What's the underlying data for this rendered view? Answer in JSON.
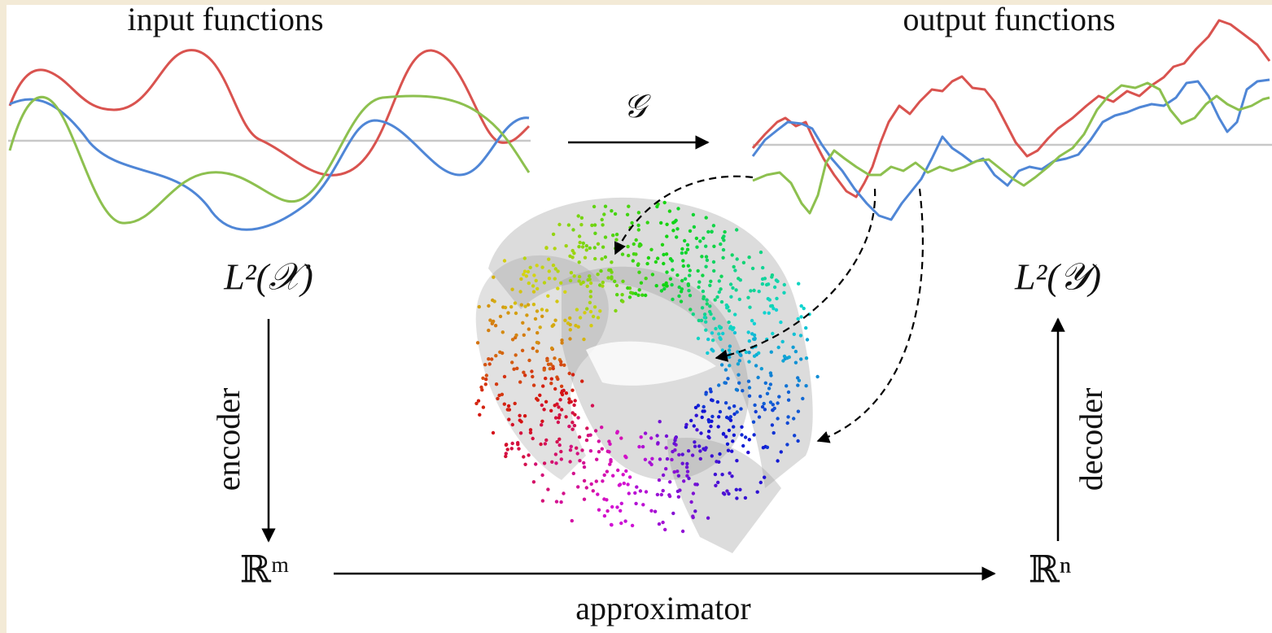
{
  "functions": {
    "input": "input functions",
    "output": "output functions"
  },
  "operator": "𝒢",
  "spaces": {
    "input": "L²(𝒳)",
    "output": "L²(𝒴)",
    "latent_in": "ℝᵐ",
    "latent_out": "ℝⁿ"
  },
  "maps": {
    "encoder": "encoder",
    "decoder": "decoder",
    "approximator": "approximator"
  }
}
